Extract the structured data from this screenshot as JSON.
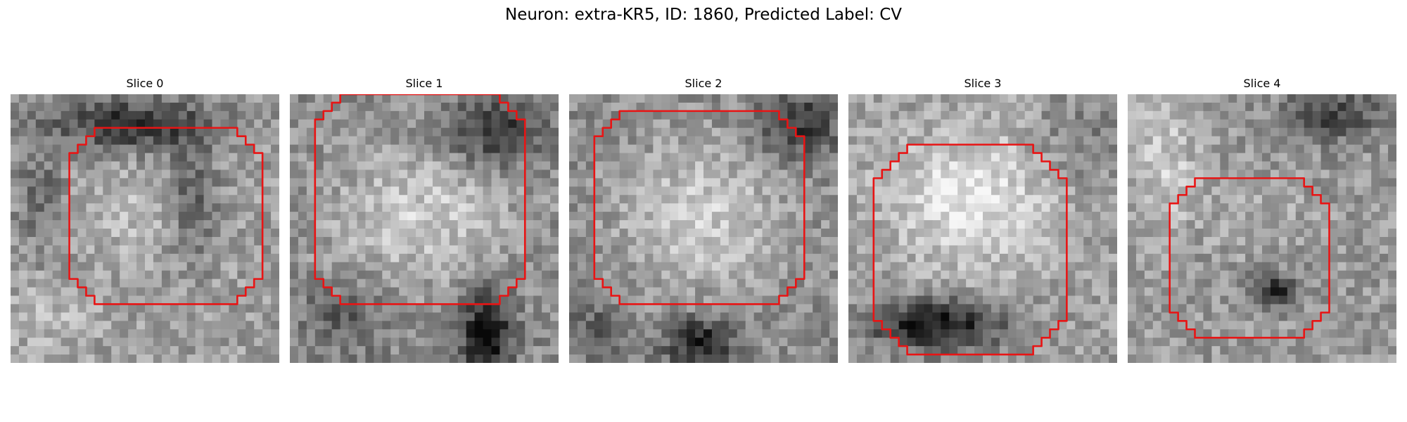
{
  "figure": {
    "title": "Neuron: extra-KR5, ID: 1860, Predicted Label: CV",
    "contour_color": "#e81414"
  },
  "slices": [
    {
      "title": "Slice 0"
    },
    {
      "title": "Slice 1"
    },
    {
      "title": "Slice 2"
    },
    {
      "title": "Slice 3"
    },
    {
      "title": "Slice 4"
    }
  ]
}
